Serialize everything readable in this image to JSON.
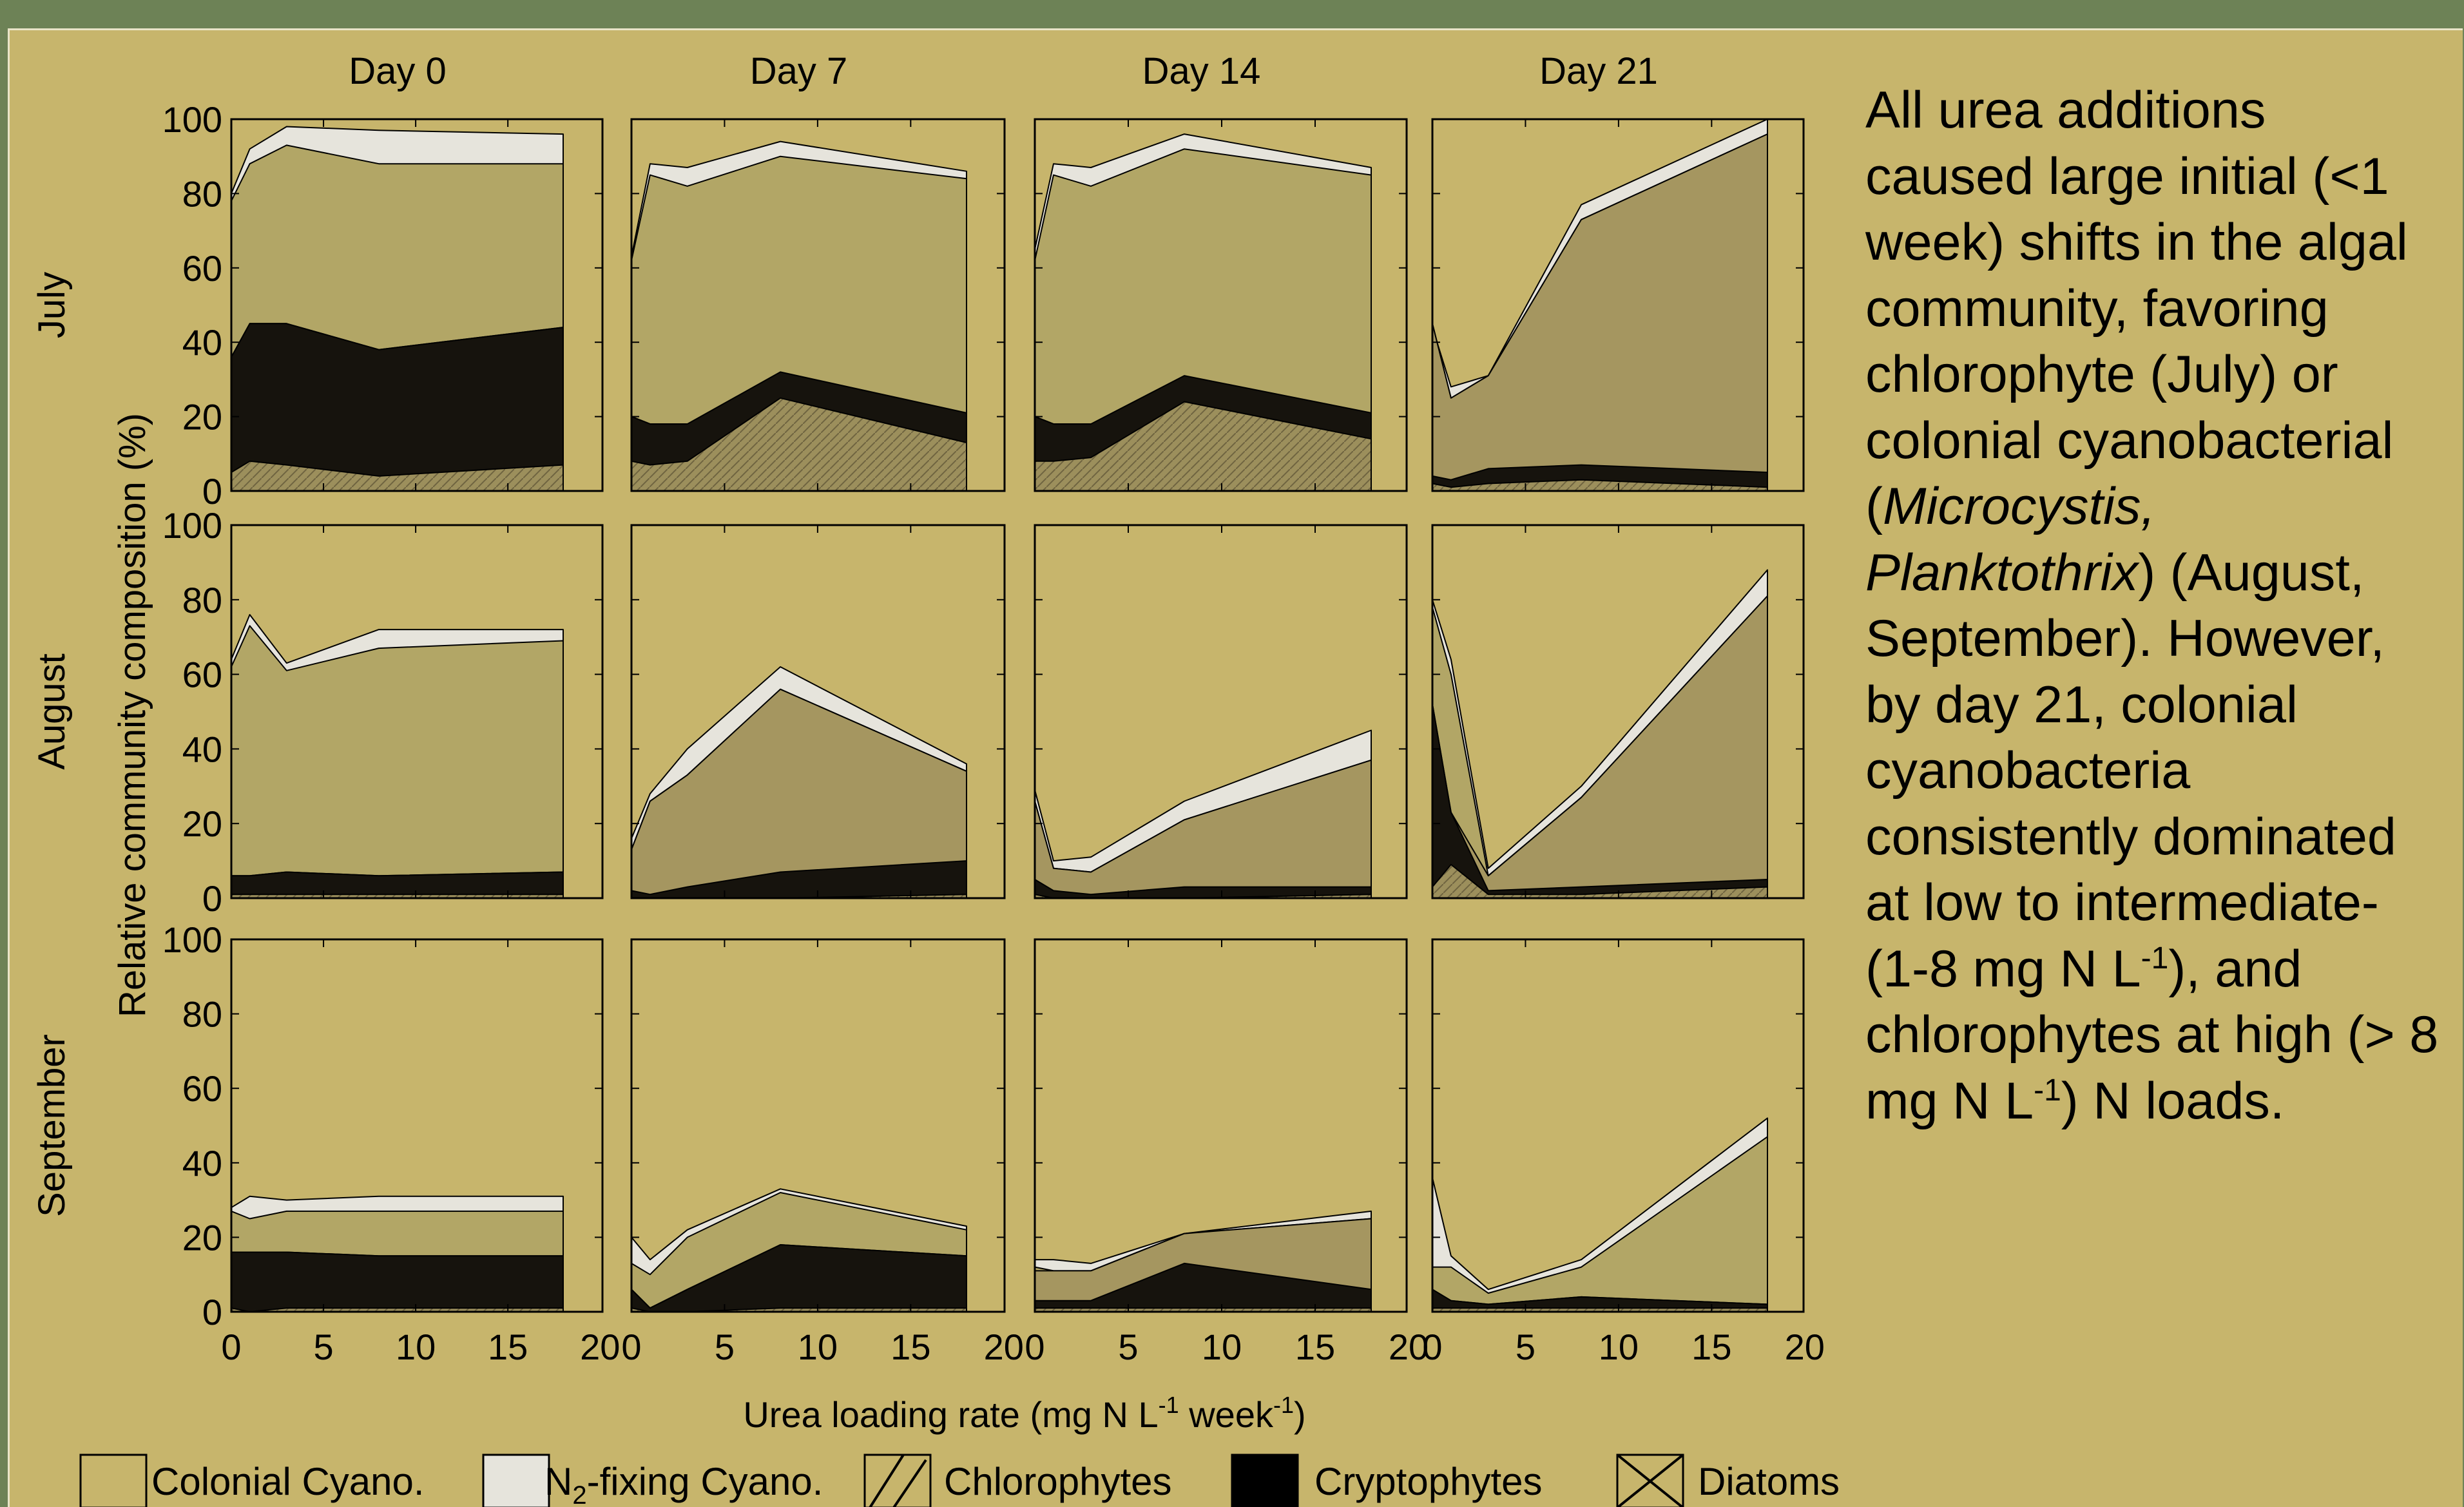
{
  "colors": {
    "page_border": "#6d8256",
    "background": "#c7b56c",
    "colonial": "#b2a666",
    "n2": "#e6e4dc",
    "chloro": "#a59660",
    "crypto": "#16130d",
    "diatom_base": "#c7b56c"
  },
  "chart_data": {
    "type": "area",
    "subtype": "stacked-area small multiples (3 rows x 4 columns)",
    "column_titles": [
      "Day 0",
      "Day 7",
      "Day 14",
      "Day 21"
    ],
    "row_titles": [
      "July",
      "August",
      "September"
    ],
    "ylabel": "Relative community composition (%)",
    "xlabel": "Urea loading rate (mg N L-1 week-1)",
    "xlabel_parts": {
      "pre": "Urea loading rate (mg N L",
      "sup1": "-1",
      "mid": " week",
      "sup2": "-1",
      "post": ")"
    },
    "xlim": [
      0,
      20
    ],
    "ylim": [
      0,
      100
    ],
    "xticks": [
      "0",
      "5",
      "10",
      "15",
      "20"
    ],
    "yticks": [
      "0",
      "20",
      "40",
      "60",
      "80",
      "100"
    ],
    "x": [
      0,
      1,
      3,
      8,
      18
    ],
    "stack_order": [
      "Diatoms",
      "Cryptophytes",
      "Chlorophytes",
      "Colonial Cyano.",
      "N2-fixing Cyano."
    ],
    "legend_placement": "bottom",
    "legend": [
      {
        "key": "colonial",
        "pre": "Colonial Cyano.",
        "sub": "",
        "post": ""
      },
      {
        "key": "n2",
        "pre": "N",
        "sub": "2",
        "post": "-fixing Cyano."
      },
      {
        "key": "chloro",
        "pre": "Chlorophytes",
        "sub": "",
        "post": ""
      },
      {
        "key": "crypto",
        "pre": "Cryptophytes",
        "sub": "",
        "post": ""
      },
      {
        "key": "diatom",
        "pre": "Diatoms",
        "sub": "",
        "post": ""
      }
    ],
    "panels": [
      {
        "row": 0,
        "col": 0,
        "cumulative": {
          "diatom": [
            5,
            8,
            7,
            4,
            7
          ],
          "crypto": [
            36,
            45,
            45,
            38,
            44
          ],
          "chloro": [
            36,
            45,
            45,
            38,
            44
          ],
          "colonial": [
            78,
            88,
            93,
            88,
            88
          ],
          "n2": [
            80,
            92,
            98,
            97,
            96
          ]
        }
      },
      {
        "row": 0,
        "col": 1,
        "cumulative": {
          "diatom": [
            8,
            7,
            8,
            25,
            13
          ],
          "crypto": [
            20,
            18,
            18,
            32,
            21
          ],
          "chloro": [
            20,
            18,
            18,
            24,
            13
          ],
          "colonial": [
            62,
            85,
            82,
            90,
            84
          ],
          "n2": [
            63,
            88,
            87,
            94,
            86
          ]
        }
      },
      {
        "row": 0,
        "col": 2,
        "cumulative": {
          "diatom": [
            8,
            8,
            9,
            24,
            14
          ],
          "crypto": [
            20,
            18,
            18,
            31,
            21
          ],
          "chloro": [
            20,
            18,
            18,
            24,
            14
          ],
          "colonial": [
            62,
            85,
            82,
            92,
            85
          ],
          "n2": [
            65,
            88,
            87,
            96,
            87
          ]
        }
      },
      {
        "row": 0,
        "col": 3,
        "cumulative": {
          "diatom": [
            2,
            1,
            2,
            3,
            1
          ],
          "crypto": [
            4,
            3,
            6,
            7,
            5
          ],
          "chloro": [
            45,
            25,
            31,
            73,
            96
          ],
          "colonial": [
            45,
            25,
            31,
            73,
            96
          ],
          "n2": [
            44,
            28,
            31,
            77,
            100
          ]
        }
      },
      {
        "row": 1,
        "col": 0,
        "cumulative": {
          "diatom": [
            1,
            1,
            1,
            1,
            1
          ],
          "crypto": [
            6,
            6,
            7,
            6,
            7
          ],
          "chloro": [
            6,
            6,
            7,
            6,
            7
          ],
          "colonial": [
            62,
            73,
            61,
            67,
            69
          ],
          "n2": [
            64,
            76,
            63,
            72,
            72
          ]
        }
      },
      {
        "row": 1,
        "col": 1,
        "cumulative": {
          "diatom": [
            0,
            0,
            0,
            0,
            1
          ],
          "crypto": [
            2,
            1,
            3,
            7,
            10
          ],
          "chloro": [
            13,
            26,
            33,
            56,
            34
          ],
          "colonial": [
            13,
            26,
            33,
            56,
            34
          ],
          "n2": [
            16,
            28,
            40,
            62,
            36
          ]
        }
      },
      {
        "row": 1,
        "col": 2,
        "cumulative": {
          "diatom": [
            1,
            0,
            0,
            0,
            1
          ],
          "crypto": [
            5,
            2,
            1,
            3,
            3
          ],
          "chloro": [
            26,
            8,
            7,
            21,
            37
          ],
          "colonial": [
            26,
            8,
            7,
            21,
            37
          ],
          "n2": [
            29,
            10,
            11,
            26,
            45
          ]
        }
      },
      {
        "row": 1,
        "col": 3,
        "cumulative": {
          "diatom": [
            3,
            9,
            1,
            1,
            3
          ],
          "crypto": [
            52,
            23,
            2,
            3,
            5
          ],
          "chloro": [
            52,
            23,
            6,
            27,
            81
          ],
          "colonial": [
            78,
            60,
            6,
            27,
            81
          ],
          "n2": [
            80,
            64,
            8,
            30,
            88
          ]
        }
      },
      {
        "row": 2,
        "col": 0,
        "cumulative": {
          "diatom": [
            1,
            0,
            1,
            1,
            1
          ],
          "crypto": [
            16,
            16,
            16,
            15,
            15
          ],
          "chloro": [
            16,
            16,
            16,
            15,
            15
          ],
          "colonial": [
            27,
            25,
            27,
            27,
            27
          ],
          "n2": [
            28,
            31,
            30,
            31,
            31
          ]
        }
      },
      {
        "row": 2,
        "col": 1,
        "cumulative": {
          "diatom": [
            1,
            0,
            0,
            1,
            1
          ],
          "crypto": [
            6,
            1,
            6,
            18,
            15
          ],
          "chloro": [
            6,
            1,
            6,
            18,
            15
          ],
          "colonial": [
            13,
            10,
            20,
            32,
            22
          ],
          "n2": [
            20,
            14,
            22,
            33,
            23
          ]
        }
      },
      {
        "row": 2,
        "col": 2,
        "cumulative": {
          "diatom": [
            1,
            1,
            1,
            1,
            1
          ],
          "crypto": [
            3,
            3,
            3,
            13,
            6
          ],
          "chloro": [
            11,
            11,
            11,
            21,
            25
          ],
          "colonial": [
            12,
            11,
            11,
            21,
            25
          ],
          "n2": [
            14,
            14,
            13,
            21,
            27
          ]
        }
      },
      {
        "row": 2,
        "col": 3,
        "cumulative": {
          "diatom": [
            1,
            1,
            1,
            1,
            1
          ],
          "crypto": [
            6,
            3,
            2,
            4,
            2
          ],
          "chloro": [
            6,
            3,
            2,
            4,
            2
          ],
          "colonial": [
            12,
            12,
            5,
            12,
            47
          ],
          "n2": [
            36,
            15,
            6,
            14,
            52
          ]
        }
      }
    ]
  },
  "note": {
    "part1": "All urea additions caused large initial (<1 week) shifts in the algal community, favoring chlorophyte (July) or colonial cyanobacterial (",
    "italic": "Microcystis, Planktothrix",
    "part2": ") (August, September).  However, by day 21, colonial cyanobacteria consistently dominated at low to intermediate- (1-8 mg N L",
    "sup1": "-1",
    "part3": "), and chlorophytes at high (> 8 mg N L",
    "sup2": "-1",
    "part4": ") N loads."
  }
}
